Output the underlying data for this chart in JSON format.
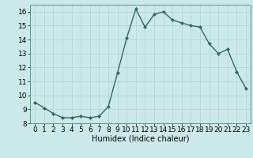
{
  "x": [
    0,
    1,
    2,
    3,
    4,
    5,
    6,
    7,
    8,
    9,
    10,
    11,
    12,
    13,
    14,
    15,
    16,
    17,
    18,
    19,
    20,
    21,
    22,
    23
  ],
  "y": [
    9.5,
    9.1,
    8.7,
    8.4,
    8.4,
    8.5,
    8.4,
    8.5,
    9.2,
    11.6,
    14.1,
    16.2,
    14.9,
    15.8,
    16.0,
    15.4,
    15.2,
    15.0,
    14.9,
    13.7,
    13.0,
    13.3,
    11.7,
    10.5
  ],
  "line_color": "#2e6b5e",
  "marker": "D",
  "marker_size": 2,
  "bg_color": "#cce9e9",
  "grid_color": "#b0d8d8",
  "xlabel": "Humidex (Indice chaleur)",
  "xlim": [
    -0.5,
    23.5
  ],
  "ylim": [
    8,
    16.5
  ],
  "yticks": [
    8,
    9,
    10,
    11,
    12,
    13,
    14,
    15,
    16
  ],
  "xticks": [
    0,
    1,
    2,
    3,
    4,
    5,
    6,
    7,
    8,
    9,
    10,
    11,
    12,
    13,
    14,
    15,
    16,
    17,
    18,
    19,
    20,
    21,
    22,
    23
  ],
  "xlabel_fontsize": 7,
  "tick_fontsize": 6.5,
  "line_width": 1.0
}
